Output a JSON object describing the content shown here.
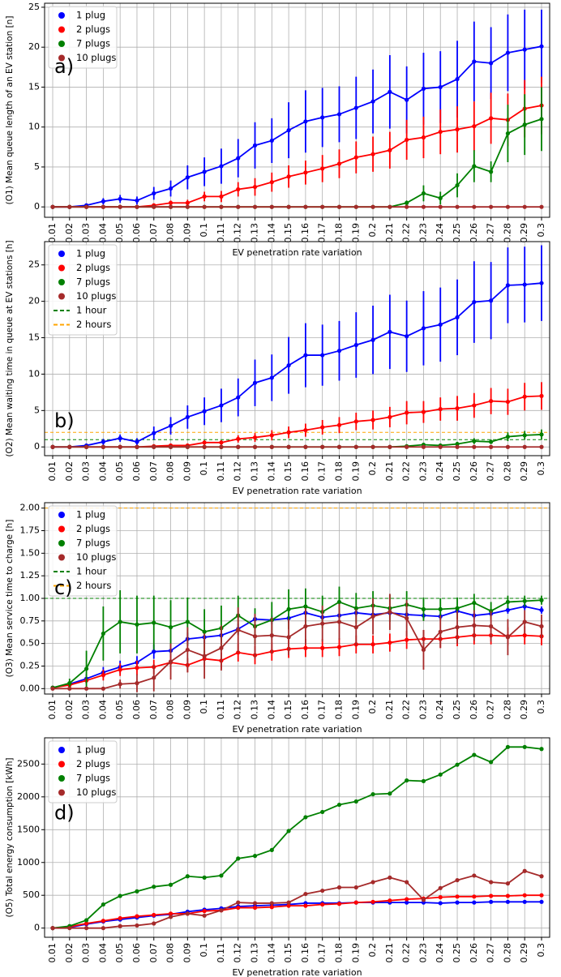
{
  "chart_data": [
    {
      "type": "line",
      "annotation": "a)",
      "xlabel": "EV penetration rate variation",
      "ylabel": "(O1) Mean queue length of an EV station [n]",
      "categories": [
        "0.01",
        "0.02",
        "0.03",
        "0.04",
        "0.05",
        "0.06",
        "0.07",
        "0.08",
        "0.09",
        "0.1",
        "0.11",
        "0.12",
        "0.13",
        "0.14",
        "0.15",
        "0.16",
        "0.17",
        "0.18",
        "0.19",
        "0.2",
        "0.21",
        "0.22",
        "0.23",
        "0.24",
        "0.25",
        "0.26",
        "0.27",
        "0.28",
        "0.29",
        "0.3"
      ],
      "series": [
        {
          "name": "1 plug",
          "color": "#0000ff",
          "values": [
            0,
            0,
            0.2,
            0.7,
            1.0,
            0.8,
            1.7,
            2.3,
            3.7,
            4.4,
            5.1,
            6.1,
            7.7,
            8.3,
            9.6,
            10.7,
            11.2,
            11.6,
            12.4,
            13.2,
            14.4,
            13.4,
            14.8,
            15.0,
            16.0,
            18.2,
            18.0,
            19.3,
            19.7,
            20.1
          ],
          "errors": [
            0,
            0,
            0.1,
            0.4,
            0.5,
            0.5,
            0.8,
            1.0,
            1.5,
            1.8,
            2.2,
            2.4,
            2.9,
            2.8,
            3.5,
            3.9,
            3.7,
            3.5,
            3.9,
            4.0,
            4.6,
            4.2,
            4.5,
            4.5,
            4.8,
            5.0,
            4.5,
            4.8,
            5.0,
            4.6
          ]
        },
        {
          "name": "2 plugs",
          "color": "#ff0000",
          "values": [
            0,
            0,
            0,
            0,
            0,
            0,
            0.2,
            0.5,
            0.5,
            1.3,
            1.3,
            2.2,
            2.5,
            3.1,
            3.8,
            4.3,
            4.8,
            5.4,
            6.2,
            6.6,
            7.1,
            8.4,
            8.7,
            9.4,
            9.7,
            10.1,
            11.1,
            10.9,
            12.3,
            12.7
          ],
          "errors": [
            0,
            0,
            0,
            0,
            0,
            0,
            0.2,
            0.3,
            0.4,
            0.6,
            0.7,
            0.9,
            1.1,
            1.2,
            1.4,
            1.5,
            1.7,
            1.8,
            2.0,
            2.2,
            2.3,
            2.5,
            2.6,
            2.8,
            2.9,
            3.1,
            3.2,
            3.3,
            3.6,
            3.6
          ]
        },
        {
          "name": "7 plugs",
          "color": "#008000",
          "values": [
            0,
            0,
            0,
            0,
            0,
            0,
            0,
            0,
            0,
            0,
            0,
            0,
            0,
            0,
            0,
            0,
            0,
            0,
            0,
            0,
            0,
            0.5,
            1.7,
            1.1,
            2.7,
            5.1,
            4.4,
            9.2,
            10.3,
            11.0
          ],
          "errors": [
            0,
            0,
            0,
            0,
            0,
            0,
            0,
            0,
            0,
            0,
            0,
            0,
            0,
            0,
            0,
            0,
            0,
            0,
            0,
            0,
            0,
            0.3,
            1.0,
            0.8,
            1.5,
            2.0,
            1.3,
            3.6,
            3.8,
            4.0
          ]
        },
        {
          "name": "10 plugs",
          "color": "#a52a2a",
          "values": [
            0,
            0,
            0,
            0,
            0,
            0,
            0,
            0,
            0,
            0,
            0,
            0,
            0,
            0,
            0,
            0,
            0,
            0,
            0,
            0,
            0,
            0,
            0,
            0,
            0,
            0,
            0,
            0,
            0,
            0
          ]
        }
      ],
      "ylim": [
        -1.3,
        25.5
      ],
      "yticks": [
        0,
        5,
        10,
        15,
        20,
        25
      ],
      "grid": true,
      "legend": "upper left"
    },
    {
      "type": "line",
      "annotation": "b)",
      "xlabel": "EV penetration rate variation",
      "ylabel": "(O2) Mean waiting time in queue at EV stations [h]",
      "categories": [
        "0.01",
        "0.02",
        "0.03",
        "0.04",
        "0.05",
        "0.06",
        "0.07",
        "0.08",
        "0.09",
        "0.1",
        "0.11",
        "0.12",
        "0.13",
        "0.14",
        "0.15",
        "0.16",
        "0.17",
        "0.18",
        "0.19",
        "0.2",
        "0.21",
        "0.22",
        "0.23",
        "0.24",
        "0.25",
        "0.26",
        "0.27",
        "0.28",
        "0.29",
        "0.3"
      ],
      "series": [
        {
          "name": "1 plug",
          "color": "#0000ff",
          "values": [
            0,
            0,
            0.2,
            0.7,
            1.2,
            0.7,
            1.9,
            2.9,
            4.1,
            4.9,
            5.7,
            6.8,
            8.8,
            9.5,
            11.2,
            12.6,
            12.6,
            13.2,
            14.0,
            14.7,
            15.8,
            15.2,
            16.3,
            16.8,
            17.8,
            19.9,
            20.1,
            22.2,
            22.3,
            22.5
          ],
          "errors": [
            0,
            0,
            0.1,
            0.4,
            0.5,
            0.5,
            0.9,
            1.2,
            1.6,
            1.9,
            2.3,
            2.6,
            3.2,
            3.2,
            3.9,
            4.4,
            4.2,
            4.1,
            4.5,
            4.7,
            5.1,
            4.9,
            5.1,
            5.1,
            5.2,
            5.6,
            5.3,
            5.2,
            5.2,
            5.2
          ]
        },
        {
          "name": "2 plugs",
          "color": "#ff0000",
          "values": [
            0,
            0,
            0,
            0,
            0,
            0,
            0.1,
            0.2,
            0.2,
            0.6,
            0.6,
            1.1,
            1.3,
            1.6,
            2.0,
            2.3,
            2.7,
            3.0,
            3.5,
            3.7,
            4.1,
            4.7,
            4.8,
            5.2,
            5.3,
            5.7,
            6.3,
            6.2,
            6.9,
            7.0
          ],
          "errors": [
            0,
            0,
            0,
            0,
            0,
            0,
            0.1,
            0.2,
            0.2,
            0.3,
            0.3,
            0.5,
            0.6,
            0.7,
            0.8,
            0.9,
            1.0,
            1.1,
            1.2,
            1.3,
            1.4,
            1.6,
            1.5,
            1.6,
            1.7,
            1.7,
            1.8,
            1.8,
            1.9,
            1.9
          ]
        },
        {
          "name": "7 plugs",
          "color": "#008000",
          "values": [
            0,
            0,
            0,
            0,
            0,
            0,
            0,
            0,
            0,
            0,
            0,
            0,
            0,
            0,
            0,
            0,
            0,
            0,
            0,
            0,
            0,
            0.1,
            0.3,
            0.2,
            0.4,
            0.8,
            0.7,
            1.4,
            1.6,
            1.7
          ],
          "errors": [
            0,
            0,
            0,
            0,
            0,
            0,
            0,
            0,
            0,
            0,
            0,
            0,
            0,
            0,
            0,
            0,
            0,
            0,
            0,
            0,
            0,
            0.1,
            0.2,
            0.2,
            0.3,
            0.4,
            0.3,
            0.6,
            0.6,
            0.7
          ]
        },
        {
          "name": "10 plugs",
          "color": "#a52a2a",
          "values": [
            0,
            0,
            0,
            0,
            0,
            0,
            0,
            0,
            0,
            0,
            0,
            0,
            0,
            0,
            0,
            0,
            0,
            0,
            0,
            0,
            0,
            0,
            0,
            0,
            0,
            0,
            0,
            0,
            0,
            0
          ]
        }
      ],
      "hlines": [
        {
          "name": "1 hour",
          "value": 1,
          "color": "#008000"
        },
        {
          "name": "2 hours",
          "value": 2,
          "color": "#ffa500"
        }
      ],
      "ylim": [
        -1.2,
        28.2
      ],
      "yticks": [
        0,
        5,
        10,
        15,
        20,
        25
      ],
      "grid": true,
      "legend": "upper left"
    },
    {
      "type": "line",
      "annotation": "c)",
      "xlabel": "EV penetration rate variation",
      "ylabel": "(O3) Mean service time to charge [h]",
      "categories": [
        "0.01",
        "0.02",
        "0.03",
        "0.04",
        "0.05",
        "0.06",
        "0.07",
        "0.08",
        "0.09",
        "0.1",
        "0.11",
        "0.12",
        "0.13",
        "0.14",
        "0.15",
        "0.16",
        "0.17",
        "0.18",
        "0.19",
        "0.2",
        "0.21",
        "0.22",
        "0.23",
        "0.24",
        "0.25",
        "0.26",
        "0.27",
        "0.28",
        "0.29",
        "0.3"
      ],
      "series": [
        {
          "name": "1 plug",
          "color": "#0000ff",
          "values": [
            0.01,
            0.05,
            0.11,
            0.18,
            0.24,
            0.29,
            0.41,
            0.42,
            0.55,
            0.57,
            0.59,
            0.66,
            0.77,
            0.76,
            0.78,
            0.84,
            0.79,
            0.81,
            0.84,
            0.82,
            0.84,
            0.82,
            0.81,
            0.8,
            0.86,
            0.81,
            0.83,
            0.87,
            0.91,
            0.87
          ],
          "errors": [
            0,
            0.02,
            0.05,
            0.06,
            0.07,
            0.07,
            0.08,
            0.07,
            0.07,
            0.07,
            0.07,
            0.06,
            0.06,
            0.05,
            0.05,
            0.05,
            0.04,
            0.04,
            0.04,
            0.04,
            0.04,
            0.04,
            0.04,
            0.04,
            0.04,
            0.04,
            0.04,
            0.04,
            0.04,
            0.04
          ]
        },
        {
          "name": "2 plugs",
          "color": "#ff0000",
          "values": [
            0.01,
            0.04,
            0.09,
            0.15,
            0.21,
            0.23,
            0.24,
            0.29,
            0.26,
            0.33,
            0.31,
            0.4,
            0.37,
            0.41,
            0.44,
            0.45,
            0.45,
            0.46,
            0.49,
            0.49,
            0.51,
            0.54,
            0.55,
            0.55,
            0.57,
            0.59,
            0.59,
            0.58,
            0.59,
            0.58
          ],
          "errors": [
            0,
            0.02,
            0.04,
            0.06,
            0.07,
            0.08,
            0.08,
            0.08,
            0.08,
            0.09,
            0.09,
            0.1,
            0.1,
            0.1,
            0.1,
            0.1,
            0.1,
            0.1,
            0.1,
            0.1,
            0.1,
            0.1,
            0.1,
            0.1,
            0.1,
            0.1,
            0.1,
            0.1,
            0.1,
            0.1
          ]
        },
        {
          "name": "7 plugs",
          "color": "#008000",
          "values": [
            0.01,
            0.06,
            0.22,
            0.61,
            0.74,
            0.71,
            0.73,
            0.68,
            0.74,
            0.63,
            0.67,
            0.81,
            0.69,
            0.76,
            0.88,
            0.91,
            0.85,
            0.96,
            0.89,
            0.92,
            0.89,
            0.93,
            0.88,
            0.88,
            0.89,
            0.95,
            0.86,
            0.96,
            0.97,
            0.98
          ],
          "errors": [
            0,
            0.05,
            0.2,
            0.3,
            0.35,
            0.32,
            0.3,
            0.3,
            0.27,
            0.25,
            0.25,
            0.22,
            0.2,
            0.2,
            0.22,
            0.2,
            0.18,
            0.17,
            0.17,
            0.16,
            0.15,
            0.15,
            0.13,
            0.12,
            0.12,
            0.1,
            0.1,
            0.07,
            0.06,
            0.05
          ]
        },
        {
          "name": "10 plugs",
          "color": "#a52a2a",
          "values": [
            0,
            0,
            0,
            0,
            0.05,
            0.06,
            0.12,
            0.3,
            0.43,
            0.36,
            0.45,
            0.65,
            0.58,
            0.59,
            0.57,
            0.69,
            0.72,
            0.74,
            0.68,
            0.8,
            0.85,
            0.78,
            0.43,
            0.63,
            0.68,
            0.7,
            0.69,
            0.57,
            0.74,
            0.69
          ],
          "errors": [
            0,
            0,
            0,
            0,
            0.05,
            0.1,
            0.15,
            0.2,
            0.25,
            0.25,
            0.25,
            0.25,
            0.25,
            0.2,
            0.2,
            0.2,
            0.2,
            0.2,
            0.2,
            0.2,
            0.2,
            0.2,
            0.22,
            0.18,
            0.18,
            0.17,
            0.17,
            0.2,
            0.13,
            0.13
          ]
        }
      ],
      "hlines": [
        {
          "name": "1 hour",
          "value": 1,
          "color": "#008000"
        },
        {
          "name": "2 hours",
          "value": 2,
          "color": "#ffa500"
        }
      ],
      "ylim": [
        -0.06,
        2.06
      ],
      "yticks": [
        {
          "value": 0,
          "label": "0.00"
        },
        0.25,
        {
          "value": 0.5,
          "label": "0.50"
        },
        0.75,
        {
          "value": 1,
          "label": "1.00"
        },
        1.25,
        {
          "value": 1.5,
          "label": "1.50"
        },
        1.75,
        {
          "value": 2,
          "label": "2.00"
        }
      ],
      "grid": true,
      "legend": "upper left"
    },
    {
      "type": "line",
      "annotation": "d)",
      "xlabel": "EV penetration rate variation",
      "ylabel": "(O5) Total energy consumption [kWh]",
      "categories": [
        "0.01",
        "0.02",
        "0.03",
        "0.04",
        "0.05",
        "0.06",
        "0.07",
        "0.08",
        "0.09",
        "0.1",
        "0.11",
        "0.12",
        "0.13",
        "0.14",
        "0.15",
        "0.16",
        "0.17",
        "0.18",
        "0.19",
        "0.2",
        "0.21",
        "0.22",
        "0.23",
        "0.24",
        "0.25",
        "0.26",
        "0.27",
        "0.28",
        "0.29",
        "0.3"
      ],
      "series": [
        {
          "name": "1 plug",
          "color": "#0000ff",
          "values": [
            0,
            10,
            60,
            100,
            130,
            160,
            190,
            210,
            250,
            280,
            300,
            330,
            340,
            350,
            360,
            380,
            380,
            380,
            390,
            390,
            390,
            390,
            390,
            380,
            390,
            390,
            400,
            400,
            400,
            400
          ]
        },
        {
          "name": "2 plugs",
          "color": "#ff0000",
          "values": [
            0,
            20,
            70,
            110,
            150,
            180,
            200,
            220,
            220,
            260,
            270,
            310,
            310,
            320,
            340,
            340,
            360,
            370,
            390,
            400,
            420,
            440,
            450,
            470,
            480,
            480,
            490,
            490,
            500,
            500
          ]
        },
        {
          "name": "7 plugs",
          "color": "#008000",
          "values": [
            0,
            30,
            120,
            360,
            490,
            560,
            630,
            660,
            790,
            770,
            800,
            1060,
            1100,
            1190,
            1480,
            1690,
            1770,
            1880,
            1930,
            2040,
            2050,
            2250,
            2240,
            2340,
            2490,
            2640,
            2530,
            2760,
            2760,
            2730
          ]
        },
        {
          "name": "10 plugs",
          "color": "#a52a2a",
          "values": [
            0,
            0,
            0,
            0,
            30,
            40,
            70,
            170,
            220,
            190,
            270,
            390,
            380,
            380,
            390,
            520,
            570,
            620,
            620,
            700,
            770,
            700,
            430,
            610,
            730,
            800,
            700,
            680,
            870,
            790
          ]
        }
      ],
      "ylim": [
        -140,
        2900
      ],
      "yticks": [
        0,
        500,
        1000,
        1500,
        2000,
        2500
      ],
      "grid": true,
      "legend": "upper left"
    }
  ]
}
